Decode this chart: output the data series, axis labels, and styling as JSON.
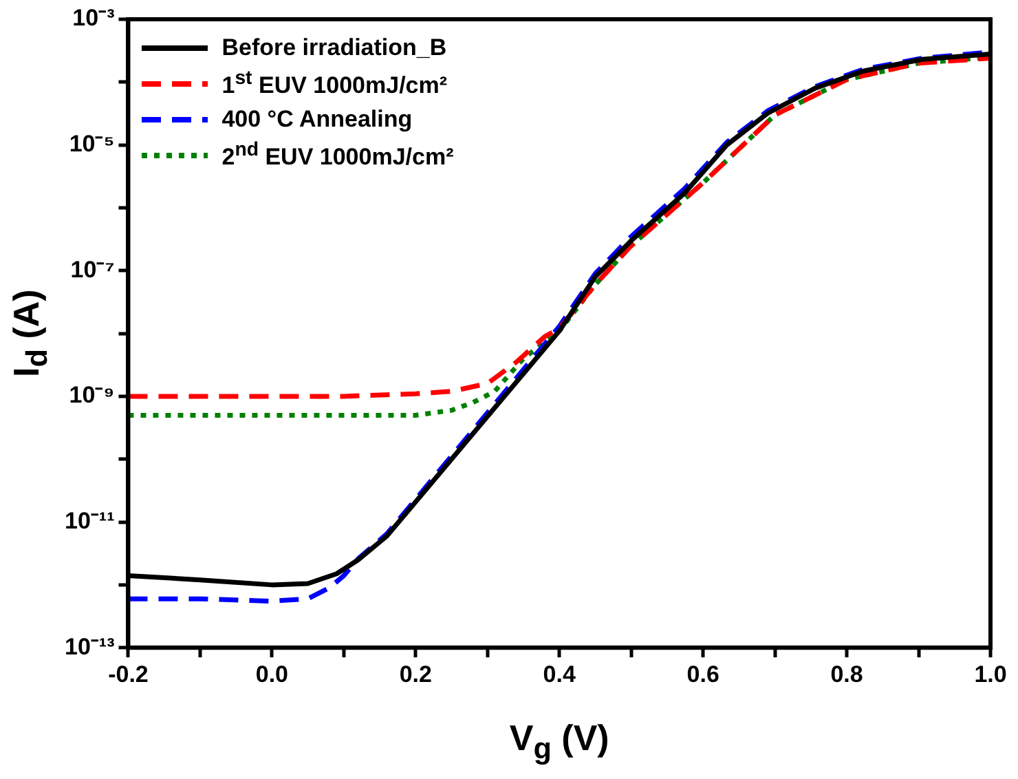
{
  "chart_data": {
    "type": "line",
    "xlabel": "V$_{g}$ (V)",
    "ylabel": "I$_{d}$ (A)",
    "log": "y",
    "legend": "top left",
    "grid": false,
    "xlim": [
      -0.2,
      1.0
    ],
    "xticks": [
      -0.2,
      {
        "value": -0.1,
        "label": null
      },
      {
        "value": 0,
        "label": "0.0"
      },
      {
        "value": 0.1,
        "label": null
      },
      0.2,
      {
        "value": 0.3,
        "label": null
      },
      0.4,
      {
        "value": 0.5,
        "label": null
      },
      0.6,
      {
        "value": 0.7,
        "label": null
      },
      0.8,
      {
        "value": 0.9,
        "label": null
      },
      {
        "value": 1.0,
        "label": "1.0"
      }
    ],
    "ylim": [
      1e-13,
      0.001
    ],
    "yticks": [
      {
        "value": 1e-13,
        "label": "10⁻¹³"
      },
      {
        "value": 1e-12,
        "label": null
      },
      {
        "value": 1e-11,
        "label": "10⁻¹¹"
      },
      {
        "value": 1e-10,
        "label": null
      },
      {
        "value": 1e-09,
        "label": "10⁻⁹"
      },
      {
        "value": 1e-08,
        "label": null
      },
      {
        "value": 1e-07,
        "label": "10⁻⁷"
      },
      {
        "value": 1e-06,
        "label": null
      },
      {
        "value": 1e-05,
        "label": "10⁻⁵"
      },
      {
        "value": 0.0001,
        "label": null
      },
      {
        "value": 0.001,
        "label": "10⁻³"
      }
    ],
    "x": [
      -0.2,
      -0.1,
      0,
      0.05,
      0.09,
      0.12,
      0.16,
      0.2,
      0.3,
      0.4,
      0.45,
      0.5,
      0.574,
      0.633,
      0.69,
      0.756,
      0.823,
      0.905,
      1.0
    ],
    "series": [
      {
        "name": "Before irradiation_B",
        "color": "#000000",
        "line_style": "solid",
        "values": [
          1.4e-12,
          1.2e-12,
          1e-12,
          1.05e-12,
          1.5e-12,
          2.5e-12,
          6e-12,
          2.1e-11,
          4.8e-10,
          1.1e-08,
          8e-08,
          3e-07,
          1.7e-06,
          1e-05,
          3.2e-05,
          8e-05,
          0.00015,
          0.00023,
          0.00028
        ]
      },
      {
        "name": "1$^{st}$ EUV 1000mJ/cm²",
        "color": "#ff0000",
        "line_style": "dashed",
        "x": [
          -0.2,
          -0.1,
          0,
          0.1,
          0.2,
          0.25,
          0.3,
          0.34,
          0.38,
          0.4,
          0.45,
          0.5,
          0.6,
          0.7,
          0.8,
          0.9,
          1.0
        ],
        "values": [
          1e-09,
          1e-09,
          1e-09,
          1e-09,
          1.1e-09,
          1.2e-09,
          1.6e-09,
          3.5e-09,
          9e-09,
          1.2e-08,
          6e-08,
          2.5e-07,
          2.5e-06,
          3e-05,
          0.00011,
          0.0002,
          0.00024
        ]
      },
      {
        "name": "400 °C Annealing",
        "color": "#0000ff",
        "line_style": "dashed",
        "x": [
          -0.2,
          -0.1,
          0,
          0.05,
          0.08,
          0.1,
          0.12,
          0.16,
          0.2,
          0.3,
          0.4,
          0.45,
          0.5,
          0.574,
          0.633,
          0.69,
          0.756,
          0.823,
          0.905,
          1.0
        ],
        "values": [
          6e-13,
          6e-13,
          5.5e-13,
          6e-13,
          9e-13,
          1.4e-12,
          2.6e-12,
          6.5e-12,
          2.3e-11,
          5.5e-10,
          1.3e-08,
          9e-08,
          3.5e-07,
          2e-06,
          1.1e-05,
          3.5e-05,
          8.5e-05,
          0.00016,
          0.00024,
          0.0003
        ]
      },
      {
        "name": "2$^{nd}$ EUV 1000mJ/cm²",
        "color": "#008000",
        "line_style": "dotted",
        "x": [
          -0.2,
          -0.1,
          0,
          0.1,
          0.2,
          0.25,
          0.28,
          0.31,
          0.35,
          0.4,
          0.45,
          0.5,
          0.6,
          0.7,
          0.8,
          0.9,
          1.0
        ],
        "values": [
          5e-10,
          5e-10,
          5e-10,
          5e-10,
          5e-10,
          6e-10,
          8e-10,
          1.2e-09,
          4e-09,
          1.1e-08,
          6e-08,
          2.5e-07,
          2.5e-06,
          3e-05,
          0.00011,
          0.0002,
          0.00025
        ]
      }
    ]
  }
}
